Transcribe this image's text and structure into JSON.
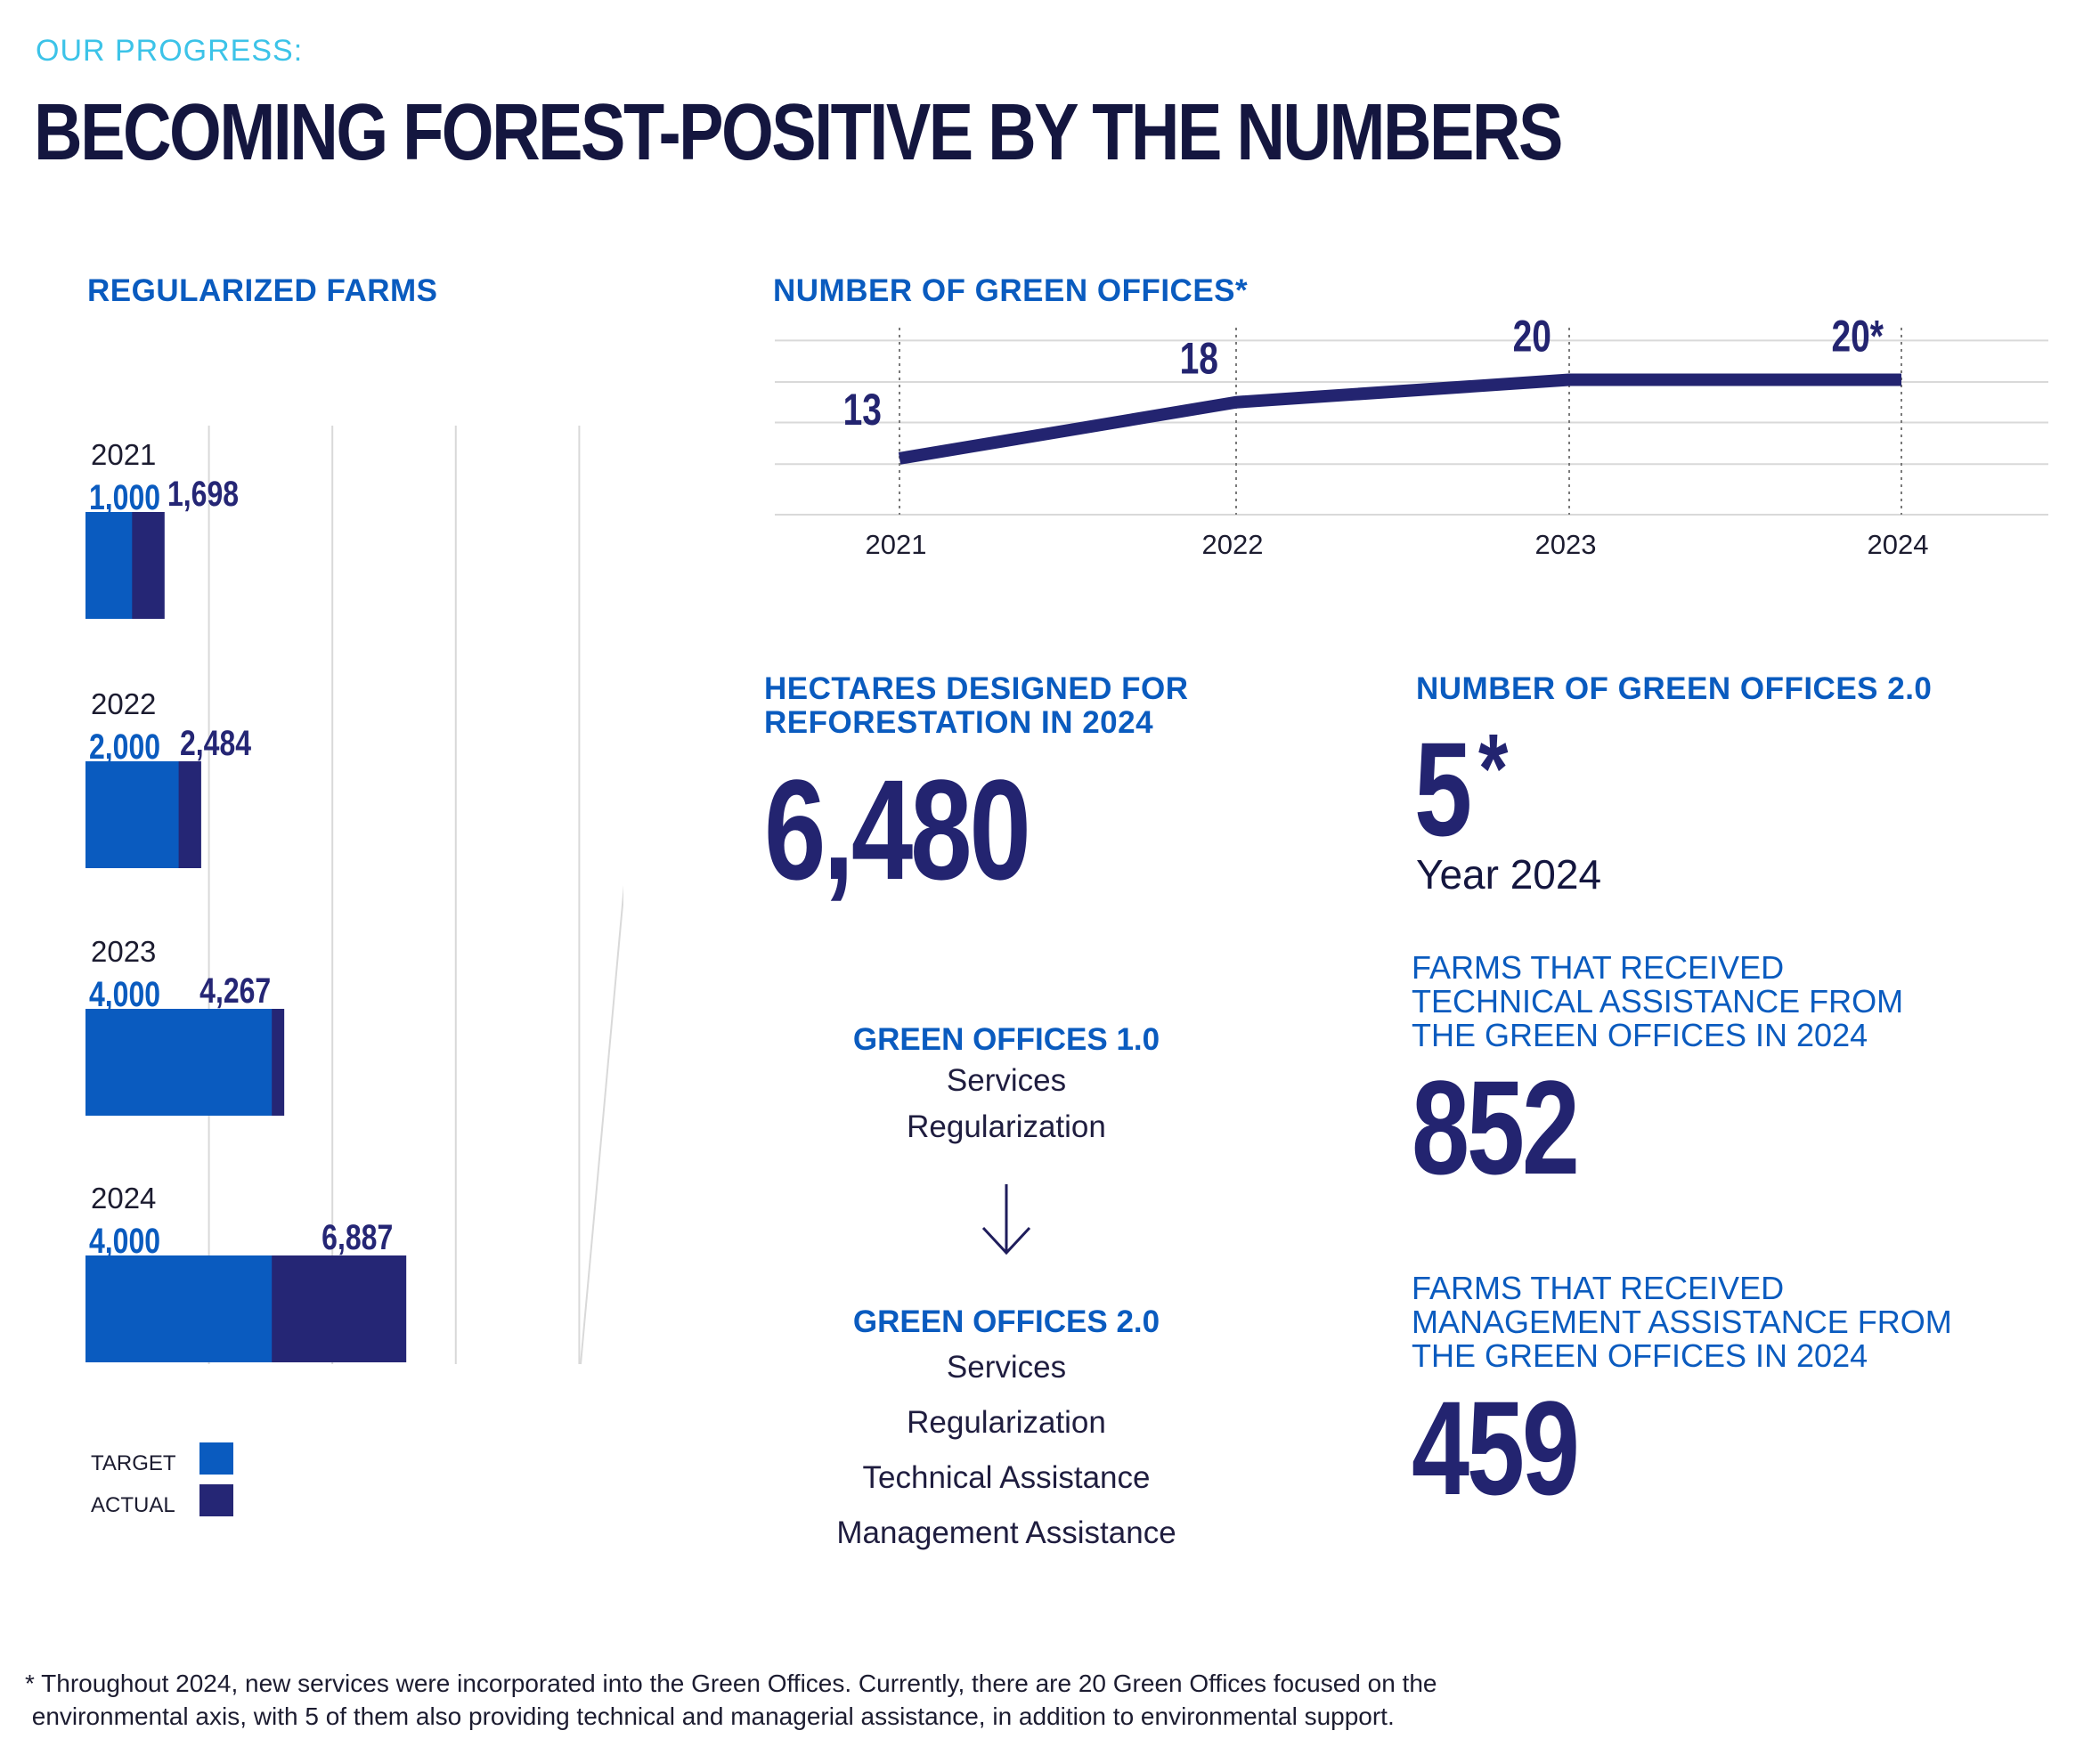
{
  "header": {
    "eyebrow": "OUR PROGRESS:",
    "title": "BECOMING FOREST-POSITIVE BY THE NUMBERS"
  },
  "colors": {
    "target": "#0a5bbf",
    "actual": "#252675",
    "navy": "#232470",
    "accent_cyan": "#3cc3e8",
    "grid": "#d9d9d9"
  },
  "chart_data": [
    {
      "type": "bar",
      "title": "REGULARIZED FARMS",
      "orientation": "horizontal",
      "categories": [
        "2021",
        "2022",
        "2023",
        "2024"
      ],
      "series": [
        {
          "name": "TARGET",
          "values": [
            1000,
            2000,
            4000,
            4000
          ]
        },
        {
          "name": "ACTUAL",
          "values": [
            1698,
            2484,
            4267,
            6887
          ]
        }
      ],
      "target_labels": [
        "1,000",
        "2,000",
        "4,000",
        "4,000"
      ],
      "actual_labels": [
        "1,698",
        "2,484",
        "4,267",
        "6,887"
      ],
      "xlim": [
        0,
        12000
      ],
      "grid": true,
      "legend_position": "bottom-left"
    },
    {
      "type": "line",
      "title": "NUMBER OF GREEN OFFICES*",
      "x": [
        "2021",
        "2022",
        "2023",
        "2024"
      ],
      "series": [
        {
          "values": [
            13,
            18,
            20,
            20
          ]
        }
      ],
      "point_labels": [
        "13",
        "18",
        "20",
        "20*"
      ],
      "ylim": [
        8,
        24
      ],
      "grid": true
    }
  ],
  "hectares": {
    "title_line1": "HECTARES DESIGNED FOR",
    "title_line2": "REFORESTATION IN 2024",
    "value": "6,480"
  },
  "green_offices_2": {
    "title": "NUMBER OF GREEN OFFICES 2.0",
    "value": "5",
    "asterisk": "*",
    "subtitle": "Year 2024"
  },
  "technical": {
    "line1": "FARMS THAT RECEIVED",
    "line2": "TECHNICAL ASSISTANCE FROM",
    "line3": "THE GREEN OFFICES IN 2024",
    "value": "852"
  },
  "management": {
    "line1": "FARMS THAT RECEIVED",
    "line2": "MANAGEMENT ASSISTANCE FROM",
    "line3": "THE GREEN OFFICES IN 2024",
    "value": "459"
  },
  "go1": {
    "title": "GREEN OFFICES 1.0",
    "services": [
      "Services",
      "Regularization"
    ]
  },
  "go2": {
    "title": "GREEN OFFICES 2.0",
    "services": [
      "Services",
      "Regularization",
      "Technical Assistance",
      "Management Assistance"
    ]
  },
  "arrow_icon": "arrow-down-icon",
  "footnote": {
    "line1": "* Throughout 2024, new services were incorporated into the Green Offices. Currently, there are 20 Green Offices focused on the",
    "line2": " environmental axis, with 5 of them also providing technical and managerial assistance, in addition to environmental support."
  }
}
